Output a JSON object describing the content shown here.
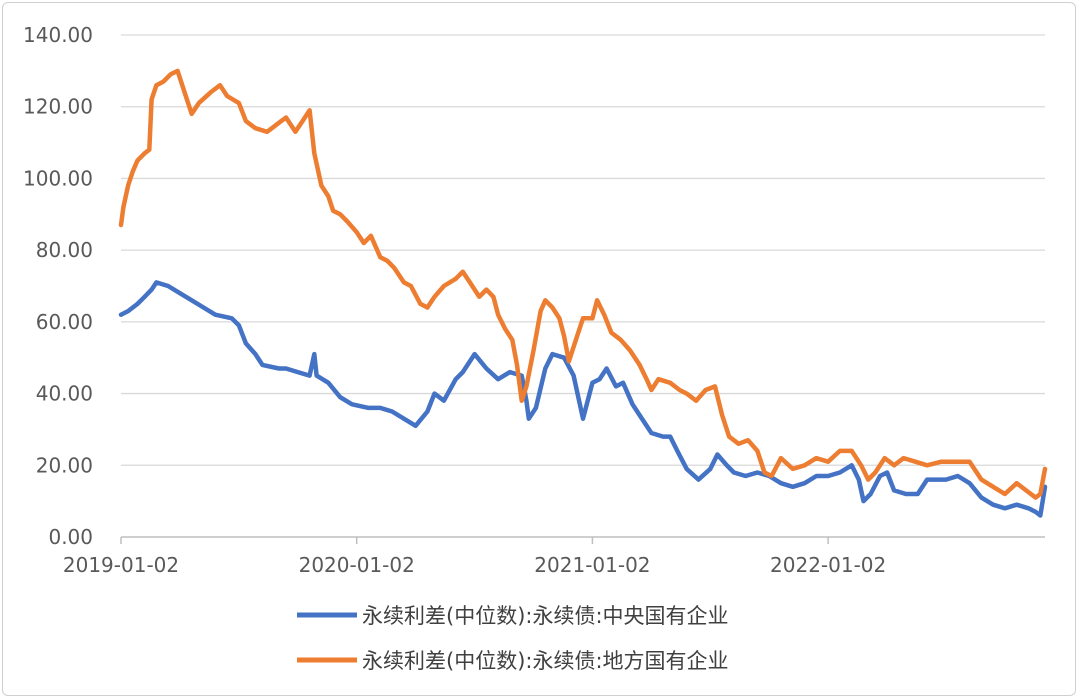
{
  "chart_data": {
    "type": "line",
    "title": "",
    "xlabel": "",
    "ylabel": "",
    "ylim": [
      0,
      140
    ],
    "y_ticks": [
      "0.00",
      "20.00",
      "40.00",
      "60.00",
      "80.00",
      "100.00",
      "120.00",
      "140.00"
    ],
    "x_tick_labels": [
      "2019-01-02",
      "2020-01-02",
      "2021-01-02",
      "2022-01-02"
    ],
    "x_tick_positions": [
      2019.0,
      2020.0,
      2021.0,
      2022.0
    ],
    "xlim": [
      2019.0,
      2022.92
    ],
    "grid": true,
    "legend_position": "bottom",
    "series": [
      {
        "name": "永续利差(中位数):永续债:中央国有企业",
        "color": "#4472C4",
        "points": [
          [
            2019.0,
            62
          ],
          [
            2019.03,
            63
          ],
          [
            2019.07,
            65
          ],
          [
            2019.1,
            67
          ],
          [
            2019.13,
            69
          ],
          [
            2019.15,
            71
          ],
          [
            2019.2,
            70
          ],
          [
            2019.25,
            68
          ],
          [
            2019.3,
            66
          ],
          [
            2019.35,
            64
          ],
          [
            2019.4,
            62
          ],
          [
            2019.47,
            61
          ],
          [
            2019.5,
            59
          ],
          [
            2019.53,
            54
          ],
          [
            2019.57,
            51
          ],
          [
            2019.6,
            48
          ],
          [
            2019.67,
            47
          ],
          [
            2019.7,
            47
          ],
          [
            2019.75,
            46
          ],
          [
            2019.8,
            45
          ],
          [
            2019.82,
            51
          ],
          [
            2019.83,
            45
          ],
          [
            2019.88,
            43
          ],
          [
            2019.93,
            39
          ],
          [
            2019.98,
            37
          ],
          [
            2020.05,
            36
          ],
          [
            2020.1,
            36
          ],
          [
            2020.15,
            35
          ],
          [
            2020.2,
            33
          ],
          [
            2020.25,
            31
          ],
          [
            2020.3,
            35
          ],
          [
            2020.33,
            40
          ],
          [
            2020.37,
            38
          ],
          [
            2020.42,
            44
          ],
          [
            2020.45,
            46
          ],
          [
            2020.5,
            51
          ],
          [
            2020.55,
            47
          ],
          [
            2020.6,
            44
          ],
          [
            2020.65,
            46
          ],
          [
            2020.7,
            45
          ],
          [
            2020.72,
            38
          ],
          [
            2020.73,
            33
          ],
          [
            2020.76,
            36
          ],
          [
            2020.8,
            47
          ],
          [
            2020.83,
            51
          ],
          [
            2020.88,
            50
          ],
          [
            2020.92,
            45
          ],
          [
            2020.96,
            33
          ],
          [
            2021.0,
            43
          ],
          [
            2021.03,
            44
          ],
          [
            2021.06,
            47
          ],
          [
            2021.1,
            42
          ],
          [
            2021.13,
            43
          ],
          [
            2021.17,
            37
          ],
          [
            2021.2,
            34
          ],
          [
            2021.25,
            29
          ],
          [
            2021.3,
            28
          ],
          [
            2021.33,
            28
          ],
          [
            2021.36,
            24
          ],
          [
            2021.4,
            19
          ],
          [
            2021.45,
            16
          ],
          [
            2021.5,
            19
          ],
          [
            2021.53,
            23
          ],
          [
            2021.57,
            20
          ],
          [
            2021.6,
            18
          ],
          [
            2021.65,
            17
          ],
          [
            2021.7,
            18
          ],
          [
            2021.75,
            17
          ],
          [
            2021.8,
            15
          ],
          [
            2021.85,
            14
          ],
          [
            2021.9,
            15
          ],
          [
            2021.95,
            17
          ],
          [
            2022.0,
            17
          ],
          [
            2022.05,
            18
          ],
          [
            2022.1,
            20
          ],
          [
            2022.13,
            16
          ],
          [
            2022.15,
            10
          ],
          [
            2022.18,
            12
          ],
          [
            2022.22,
            17
          ],
          [
            2022.25,
            18
          ],
          [
            2022.28,
            13
          ],
          [
            2022.33,
            12
          ],
          [
            2022.38,
            12
          ],
          [
            2022.42,
            16
          ],
          [
            2022.5,
            16
          ],
          [
            2022.55,
            17
          ],
          [
            2022.6,
            15
          ],
          [
            2022.65,
            11
          ],
          [
            2022.7,
            9
          ],
          [
            2022.75,
            8
          ],
          [
            2022.8,
            9
          ],
          [
            2022.85,
            8
          ],
          [
            2022.88,
            7
          ],
          [
            2022.9,
            6
          ],
          [
            2022.92,
            14
          ]
        ]
      },
      {
        "name": "永续利差(中位数):永续债:地方国有企业",
        "color": "#ED7D31",
        "points": [
          [
            2019.0,
            87
          ],
          [
            2019.01,
            92
          ],
          [
            2019.03,
            98
          ],
          [
            2019.05,
            102
          ],
          [
            2019.07,
            105
          ],
          [
            2019.1,
            107
          ],
          [
            2019.12,
            108
          ],
          [
            2019.13,
            122
          ],
          [
            2019.15,
            126
          ],
          [
            2019.18,
            127
          ],
          [
            2019.21,
            129
          ],
          [
            2019.24,
            130
          ],
          [
            2019.27,
            124
          ],
          [
            2019.3,
            118
          ],
          [
            2019.33,
            121
          ],
          [
            2019.38,
            124
          ],
          [
            2019.42,
            126
          ],
          [
            2019.45,
            123
          ],
          [
            2019.5,
            121
          ],
          [
            2019.53,
            116
          ],
          [
            2019.57,
            114
          ],
          [
            2019.62,
            113
          ],
          [
            2019.66,
            115
          ],
          [
            2019.7,
            117
          ],
          [
            2019.74,
            113
          ],
          [
            2019.77,
            116
          ],
          [
            2019.8,
            119
          ],
          [
            2019.82,
            107
          ],
          [
            2019.85,
            98
          ],
          [
            2019.88,
            95
          ],
          [
            2019.9,
            91
          ],
          [
            2019.93,
            90
          ],
          [
            2019.96,
            88
          ],
          [
            2020.0,
            85
          ],
          [
            2020.03,
            82
          ],
          [
            2020.06,
            84
          ],
          [
            2020.1,
            78
          ],
          [
            2020.13,
            77
          ],
          [
            2020.16,
            75
          ],
          [
            2020.2,
            71
          ],
          [
            2020.23,
            70
          ],
          [
            2020.27,
            65
          ],
          [
            2020.3,
            64
          ],
          [
            2020.33,
            67
          ],
          [
            2020.37,
            70
          ],
          [
            2020.42,
            72
          ],
          [
            2020.45,
            74
          ],
          [
            2020.48,
            71
          ],
          [
            2020.52,
            67
          ],
          [
            2020.55,
            69
          ],
          [
            2020.58,
            67
          ],
          [
            2020.6,
            62
          ],
          [
            2020.63,
            58
          ],
          [
            2020.66,
            55
          ],
          [
            2020.68,
            48
          ],
          [
            2020.7,
            38
          ],
          [
            2020.72,
            42
          ],
          [
            2020.75,
            52
          ],
          [
            2020.78,
            63
          ],
          [
            2020.8,
            66
          ],
          [
            2020.83,
            64
          ],
          [
            2020.86,
            61
          ],
          [
            2020.88,
            56
          ],
          [
            2020.9,
            49
          ],
          [
            2020.93,
            55
          ],
          [
            2020.96,
            61
          ],
          [
            2021.0,
            61
          ],
          [
            2021.02,
            66
          ],
          [
            2021.05,
            62
          ],
          [
            2021.08,
            57
          ],
          [
            2021.12,
            55
          ],
          [
            2021.16,
            52
          ],
          [
            2021.2,
            48
          ],
          [
            2021.23,
            44
          ],
          [
            2021.25,
            41
          ],
          [
            2021.28,
            44
          ],
          [
            2021.33,
            43
          ],
          [
            2021.37,
            41
          ],
          [
            2021.4,
            40
          ],
          [
            2021.44,
            38
          ],
          [
            2021.48,
            41
          ],
          [
            2021.52,
            42
          ],
          [
            2021.55,
            34
          ],
          [
            2021.58,
            28
          ],
          [
            2021.62,
            26
          ],
          [
            2021.66,
            27
          ],
          [
            2021.7,
            24
          ],
          [
            2021.73,
            18
          ],
          [
            2021.76,
            17
          ],
          [
            2021.8,
            22
          ],
          [
            2021.85,
            19
          ],
          [
            2021.9,
            20
          ],
          [
            2021.95,
            22
          ],
          [
            2022.0,
            21
          ],
          [
            2022.05,
            24
          ],
          [
            2022.1,
            24
          ],
          [
            2022.14,
            20
          ],
          [
            2022.17,
            16
          ],
          [
            2022.2,
            18
          ],
          [
            2022.24,
            22
          ],
          [
            2022.28,
            20
          ],
          [
            2022.32,
            22
          ],
          [
            2022.37,
            21
          ],
          [
            2022.42,
            20
          ],
          [
            2022.48,
            21
          ],
          [
            2022.54,
            21
          ],
          [
            2022.6,
            21
          ],
          [
            2022.65,
            16
          ],
          [
            2022.7,
            14
          ],
          [
            2022.75,
            12
          ],
          [
            2022.8,
            15
          ],
          [
            2022.84,
            13
          ],
          [
            2022.88,
            11
          ],
          [
            2022.9,
            12
          ],
          [
            2022.92,
            19
          ]
        ]
      }
    ]
  }
}
